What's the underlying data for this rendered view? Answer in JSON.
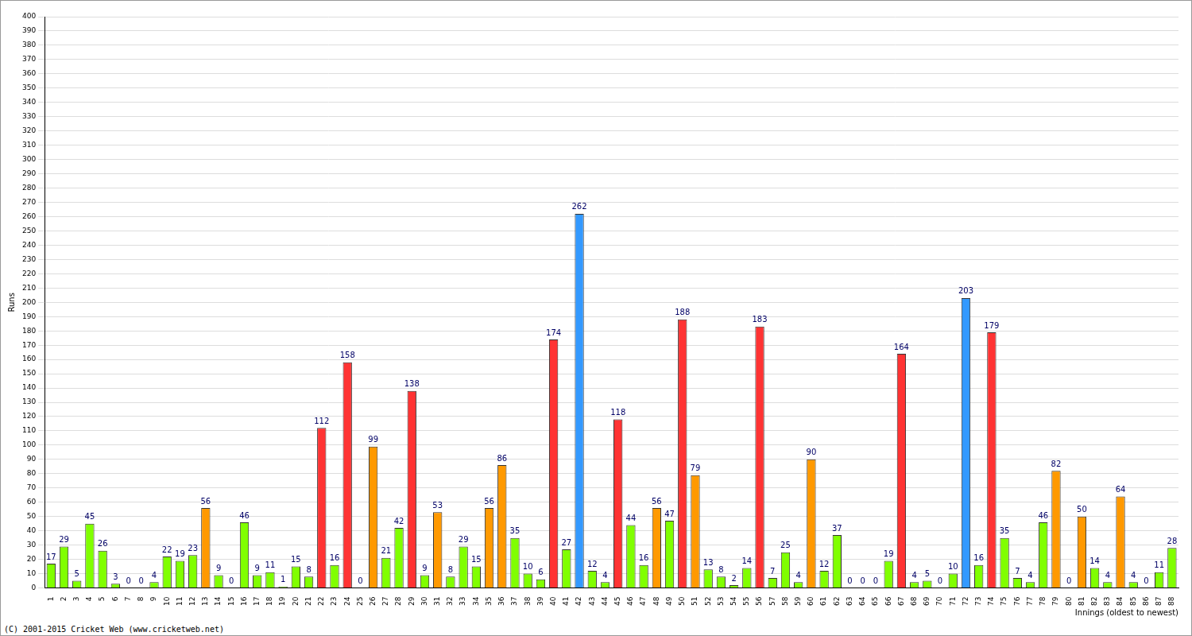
{
  "chart_data": {
    "type": "bar",
    "x_label": "Innings (oldest to newest)",
    "y_label": "Runs",
    "annotations": [
      "(C) 2001-2015 Cricket Web (www.cricketweb.net)"
    ],
    "categories": [
      "1",
      "2",
      "3",
      "4",
      "5",
      "6",
      "7",
      "8",
      "9",
      "10",
      "11",
      "12",
      "13",
      "14",
      "15",
      "16",
      "17",
      "18",
      "19",
      "20",
      "21",
      "22",
      "23",
      "24",
      "25",
      "26",
      "27",
      "28",
      "29",
      "30",
      "31",
      "32",
      "33",
      "34",
      "35",
      "36",
      "37",
      "38",
      "39",
      "40",
      "41",
      "42",
      "43",
      "44",
      "45",
      "46",
      "47",
      "48",
      "49",
      "50",
      "51",
      "52",
      "53",
      "54",
      "55",
      "56",
      "57",
      "58",
      "59",
      "60",
      "61",
      "62",
      "63",
      "64",
      "65",
      "66",
      "67",
      "68",
      "69",
      "70",
      "71",
      "72",
      "73",
      "74",
      "75",
      "76",
      "77",
      "78",
      "79",
      "80",
      "81",
      "82",
      "83",
      "84",
      "85",
      "86",
      "87",
      "88"
    ],
    "values": [
      17,
      29,
      5,
      45,
      26,
      3,
      0,
      0,
      4,
      22,
      19,
      23,
      56,
      9,
      0,
      46,
      9,
      11,
      1,
      15,
      8,
      112,
      16,
      158,
      0,
      99,
      21,
      42,
      138,
      9,
      53,
      8,
      29,
      15,
      56,
      86,
      35,
      10,
      6,
      174,
      27,
      262,
      12,
      4,
      118,
      44,
      16,
      56,
      47,
      188,
      79,
      13,
      8,
      2,
      14,
      183,
      7,
      25,
      4,
      90,
      12,
      37,
      0,
      0,
      0,
      19,
      164,
      4,
      5,
      0,
      10,
      203,
      16,
      179,
      35,
      7,
      4,
      46,
      82,
      0,
      50,
      14,
      4,
      64,
      4,
      0,
      11,
      28
    ],
    "colors": [
      "#80ff00",
      "#80ff00",
      "#80ff00",
      "#80ff00",
      "#80ff00",
      "#80ff00",
      "#80ff00",
      "#80ff00",
      "#80ff00",
      "#80ff00",
      "#80ff00",
      "#80ff00",
      "#ff9900",
      "#80ff00",
      "#80ff00",
      "#80ff00",
      "#80ff00",
      "#80ff00",
      "#80ff00",
      "#80ff00",
      "#80ff00",
      "#ff3333",
      "#80ff00",
      "#ff3333",
      "#80ff00",
      "#ff9900",
      "#80ff00",
      "#80ff00",
      "#ff3333",
      "#80ff00",
      "#ff9900",
      "#80ff00",
      "#80ff00",
      "#80ff00",
      "#ff9900",
      "#ff9900",
      "#80ff00",
      "#80ff00",
      "#80ff00",
      "#ff3333",
      "#80ff00",
      "#3399ff",
      "#80ff00",
      "#80ff00",
      "#ff3333",
      "#80ff00",
      "#80ff00",
      "#ff9900",
      "#80ff00",
      "#ff3333",
      "#ff9900",
      "#80ff00",
      "#80ff00",
      "#80ff00",
      "#80ff00",
      "#ff3333",
      "#80ff00",
      "#80ff00",
      "#80ff00",
      "#ff9900",
      "#80ff00",
      "#80ff00",
      "#80ff00",
      "#80ff00",
      "#80ff00",
      "#80ff00",
      "#ff3333",
      "#80ff00",
      "#80ff00",
      "#80ff00",
      "#80ff00",
      "#3399ff",
      "#80ff00",
      "#ff3333",
      "#80ff00",
      "#80ff00",
      "#80ff00",
      "#80ff00",
      "#ff9900",
      "#80ff00",
      "#ff9900",
      "#80ff00",
      "#80ff00",
      "#ff9900",
      "#80ff00",
      "#80ff00",
      "#80ff00",
      "#80ff00"
    ],
    "ylim": [
      0,
      400
    ],
    "yticks": [
      0,
      10,
      20,
      30,
      40,
      50,
      60,
      70,
      80,
      90,
      100,
      110,
      120,
      130,
      140,
      150,
      160,
      170,
      180,
      190,
      200,
      210,
      220,
      230,
      240,
      250,
      260,
      270,
      280,
      290,
      300,
      310,
      320,
      330,
      340,
      350,
      360,
      370,
      380,
      390,
      400
    ],
    "grid": true,
    "data_labels": true
  }
}
